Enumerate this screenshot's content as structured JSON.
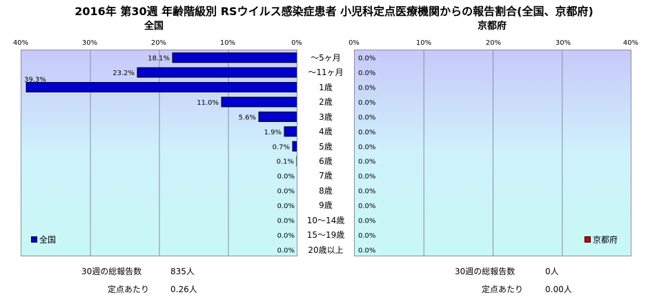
{
  "title": "2016年 第30週 年齢階級別 RSウイルス感染症患者 小児科定点医療機関からの報告割合(全国、京都府)",
  "categories": [
    "～5ヶ月",
    "～11ヶ月",
    "1歳",
    "2歳",
    "3歳",
    "4歳",
    "5歳",
    "6歳",
    "7歳",
    "8歳",
    "9歳",
    "10～14歳",
    "15～19歳",
    "20歳以上"
  ],
  "chart_data": [
    {
      "type": "bar",
      "subtitle": "全国",
      "orientation": "horizontal-reversed",
      "categories": [
        "～5ヶ月",
        "～11ヶ月",
        "1歳",
        "2歳",
        "3歳",
        "4歳",
        "5歳",
        "6歳",
        "7歳",
        "8歳",
        "9歳",
        "10～14歳",
        "15～19歳",
        "20歳以上"
      ],
      "series": [
        {
          "name": "全国",
          "values": [
            18.1,
            23.2,
            39.3,
            11.0,
            5.6,
            1.9,
            0.7,
            0.1,
            0.0,
            0.0,
            0.0,
            0.0,
            0.0,
            0.0
          ],
          "color": "#0000cc"
        }
      ],
      "data_labels": [
        "18.1%",
        "23.2%",
        "39.3%",
        "11.0%",
        "5.6%",
        "1.9%",
        "0.7%",
        "0.1%",
        "0.0%",
        "0.0%",
        "0.0%",
        "0.0%",
        "0.0%",
        "0.0%"
      ],
      "xlim": [
        0,
        40
      ],
      "ticks": [
        "40%",
        "30%",
        "20%",
        "10%",
        "0%"
      ],
      "grid": true,
      "legend_position": "bottom-left"
    },
    {
      "type": "bar",
      "subtitle": "京都府",
      "orientation": "horizontal",
      "categories": [
        "～5ヶ月",
        "～11ヶ月",
        "1歳",
        "2歳",
        "3歳",
        "4歳",
        "5歳",
        "6歳",
        "7歳",
        "8歳",
        "9歳",
        "10～14歳",
        "15～19歳",
        "20歳以上"
      ],
      "series": [
        {
          "name": "京都府",
          "values": [
            0,
            0,
            0,
            0,
            0,
            0,
            0,
            0,
            0,
            0,
            0,
            0,
            0,
            0
          ],
          "color": "#cc0000"
        }
      ],
      "data_labels": [
        "0.0%",
        "0.0%",
        "0.0%",
        "0.0%",
        "0.0%",
        "0.0%",
        "0.0%",
        "0.0%",
        "0.0%",
        "0.0%",
        "0.0%",
        "0.0%",
        "0.0%",
        "0.0%"
      ],
      "xlim": [
        0,
        40
      ],
      "ticks": [
        "0%",
        "10%",
        "20%",
        "30%",
        "40%"
      ],
      "grid": true,
      "legend_position": "bottom-right"
    }
  ],
  "footer": {
    "national": {
      "reports_label": "30週の総報告数",
      "reports_value": "835人",
      "per_site_label": "定点あたり",
      "per_site_value": "0.26人"
    },
    "kyoto": {
      "reports_label": "30週の総報告数",
      "reports_value": "0人",
      "per_site_label": "定点あたり",
      "per_site_value": "0.00人"
    }
  }
}
